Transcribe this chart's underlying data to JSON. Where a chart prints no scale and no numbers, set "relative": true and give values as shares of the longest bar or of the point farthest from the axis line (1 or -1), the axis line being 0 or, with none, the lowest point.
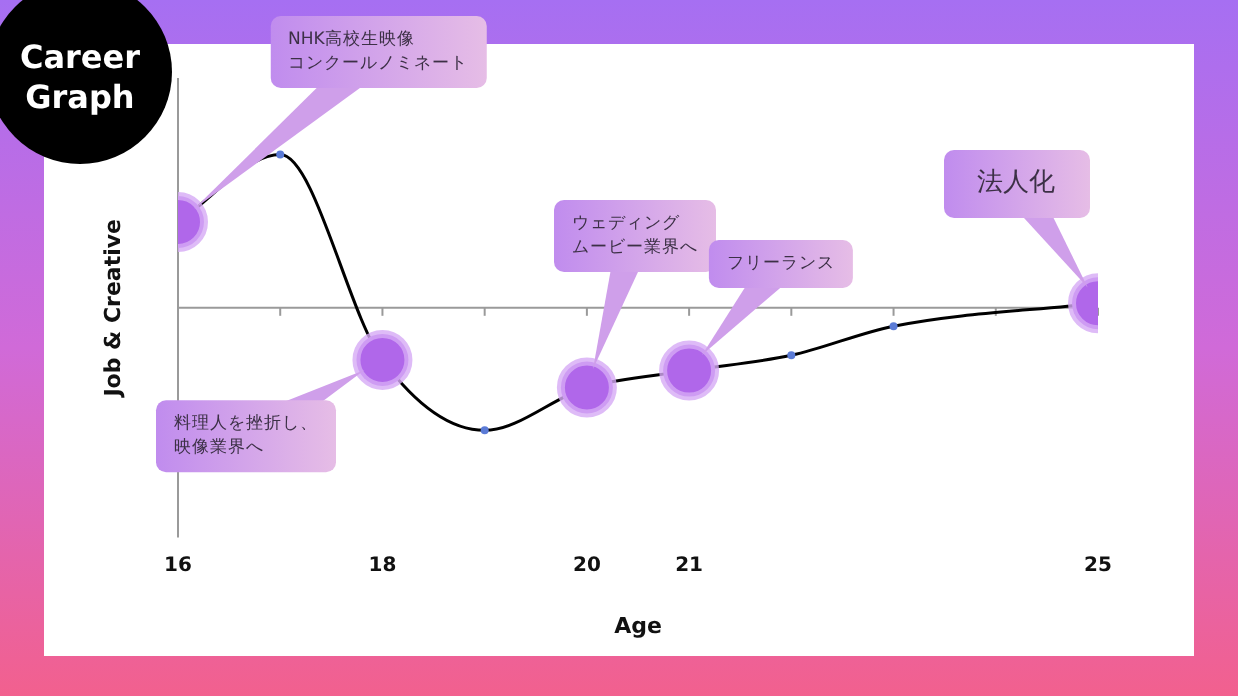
{
  "chart_data": {
    "type": "line",
    "title": "Career Graph",
    "xlabel": "Age",
    "ylabel": "Job & Creative",
    "relative": true,
    "x": [
      16,
      17,
      18,
      19,
      20,
      21,
      22,
      23,
      25
    ],
    "series": [
      {
        "color": "#000000",
        "values": [
          0.56,
          1,
          -0.34,
          -0.8,
          -0.52,
          -0.41,
          -0.31,
          -0.12,
          0.03
        ]
      }
    ],
    "xlim": [
      16,
      25
    ],
    "xticks": [
      16,
      {
        "value": 17,
        "label": null
      },
      18,
      {
        "value": 19,
        "label": null
      },
      20,
      21,
      {
        "value": 22,
        "label": null
      },
      {
        "value": 23,
        "label": null
      },
      {
        "value": 24,
        "label": null
      },
      25
    ],
    "marker": "circle",
    "grid": false,
    "legend": false,
    "annotations": [
      "NHK高校生映像コンクールノミネート",
      "料理人を挫折し、映像業界へ",
      "ウェディングムービー業界へ",
      "フリーランス",
      "法人化"
    ]
  }
}
